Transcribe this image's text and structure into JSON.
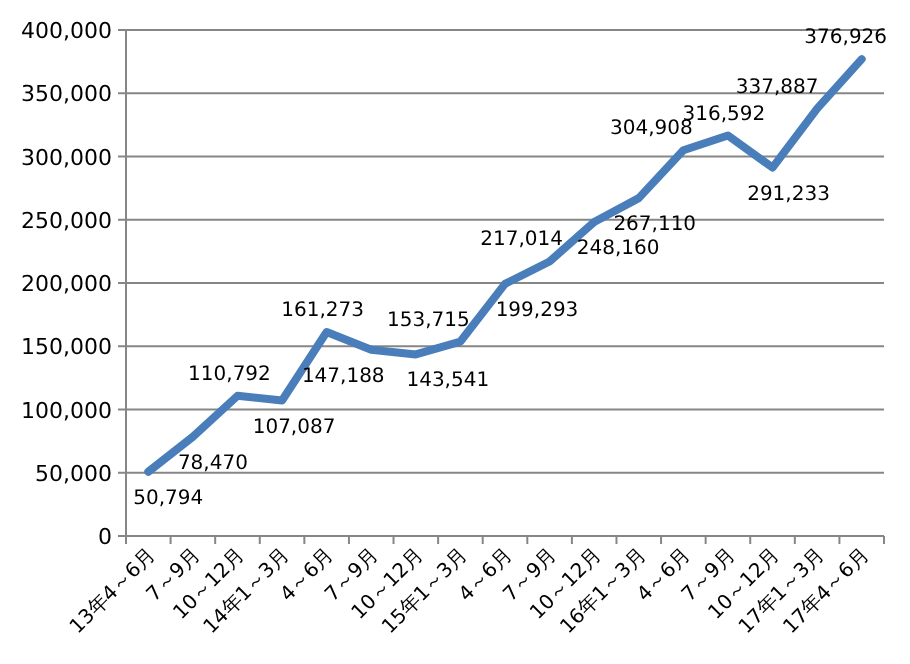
{
  "chart_data": {
    "type": "line",
    "categories": [
      "13年4～6月",
      "7～9月",
      "10～12月",
      "14年1～3月",
      "4～6月",
      "7～9月",
      "10～12月",
      "15年1～3月",
      "4～6月",
      "7～9月",
      "10～12月",
      "16年1～3月",
      "4～6月",
      "7～9月",
      "10～12月",
      "17年1～3月",
      "17年4～6月"
    ],
    "series": [
      {
        "color": "#4a7ebb",
        "values": [
          50794,
          78470,
          110792,
          107087,
          161273,
          147188,
          143541,
          153715,
          199293,
          217014,
          248160,
          267110,
          304908,
          316592,
          291233,
          337887,
          376926
        ]
      }
    ],
    "value_labels": [
      "50,794",
      "78,470",
      "110,792",
      "107,087",
      "161,273",
      "147,188",
      "143,541",
      "153,715",
      "199,293",
      "217,014",
      "248,160",
      "267,110",
      "304,908",
      "316,592",
      "291,233",
      "337,887",
      "376,926"
    ],
    "ylim": [
      0,
      400000
    ],
    "yticks": [
      {
        "value": 0,
        "label": "0"
      },
      {
        "value": 50000,
        "label": "50,000"
      },
      {
        "value": 100000,
        "label": "100,000"
      },
      {
        "value": 150000,
        "label": "150,000"
      },
      {
        "value": 200000,
        "label": "200,000"
      },
      {
        "value": 250000,
        "label": "250,000"
      },
      {
        "value": 300000,
        "label": "300,000"
      },
      {
        "value": 350000,
        "label": "350,000"
      },
      {
        "value": 400000,
        "label": "400,000"
      }
    ],
    "grid": "y",
    "marker": "none",
    "line_style": "solid"
  }
}
